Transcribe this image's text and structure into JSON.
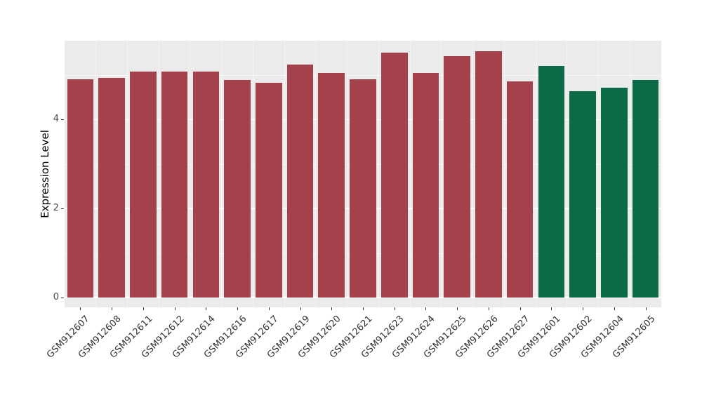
{
  "figure": {
    "background": "#FFFFFF",
    "panel_background": "#EBEBEB",
    "grid_color": "#FFFFFF",
    "tick_label_color": "#4D4D4D",
    "axis_title_color": "#000000"
  },
  "chart_data": {
    "type": "bar",
    "title": "",
    "xlabel": "",
    "ylabel": "Expression Level",
    "ylim": [
      0,
      5.77
    ],
    "yticks": [
      0,
      2,
      4
    ],
    "yminorticks": [
      1,
      3,
      5
    ],
    "grid": true,
    "legend": false,
    "categories": [
      "GSM912607",
      "GSM912608",
      "GSM912611",
      "GSM912612",
      "GSM912614",
      "GSM912616",
      "GSM912617",
      "GSM912619",
      "GSM912620",
      "GSM912621",
      "GSM912623",
      "GSM912624",
      "GSM912625",
      "GSM912626",
      "GSM912627",
      "GSM912601",
      "GSM912602",
      "GSM912604",
      "GSM912605"
    ],
    "values": [
      4.91,
      4.94,
      5.08,
      5.08,
      5.07,
      4.88,
      4.83,
      5.23,
      5.05,
      4.91,
      5.5,
      5.04,
      5.43,
      5.53,
      4.85,
      5.2,
      4.64,
      4.72,
      4.88
    ],
    "bar_colors": [
      "#A3414D",
      "#A3414D",
      "#A3414D",
      "#A3414D",
      "#A3414D",
      "#A3414D",
      "#A3414D",
      "#A3414D",
      "#A3414D",
      "#A3414D",
      "#A3414D",
      "#A3414D",
      "#A3414D",
      "#A3414D",
      "#A3414D",
      "#0A6B46",
      "#0A6B46",
      "#0A6B46",
      "#0A6B46"
    ],
    "group_colors": {
      "maroon_group": "#A3414D",
      "green_group": "#0A6B46"
    }
  }
}
